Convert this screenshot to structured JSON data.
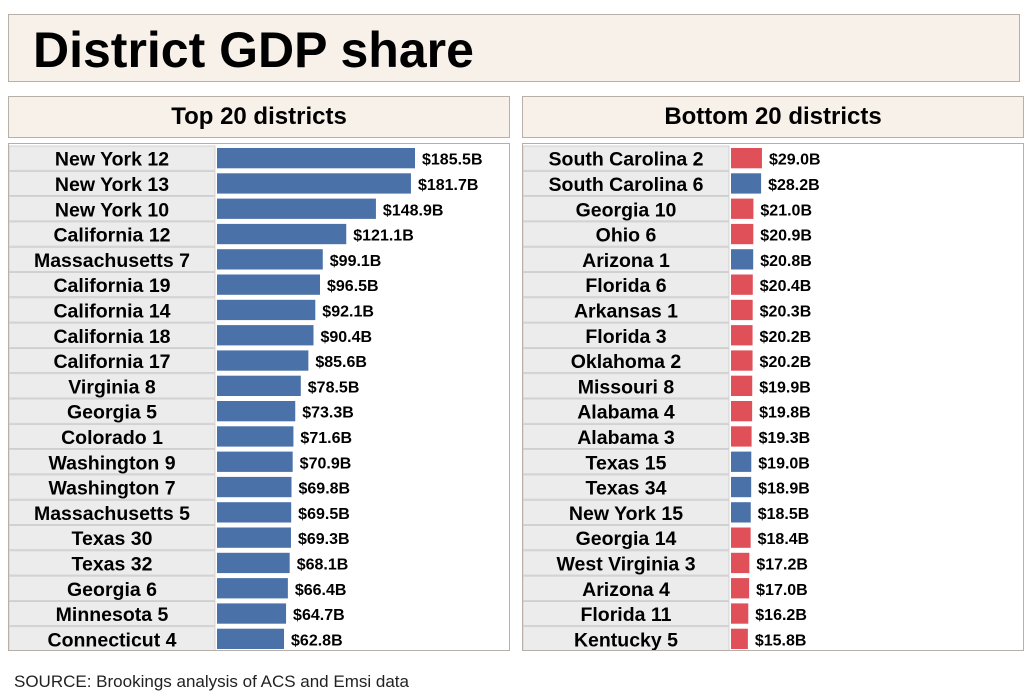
{
  "title": "District GDP share",
  "source": "SOURCE: Brookings analysis of ACS and Emsi data",
  "colors": {
    "blue": "#4a72a8",
    "red": "#e05058",
    "header_bg": "#f8f1ea",
    "label_bg": "#ececec"
  },
  "chart_data": [
    {
      "type": "bar",
      "orientation": "horizontal",
      "title": "Top 20 districts",
      "xlim": [
        0,
        185.5
      ],
      "categories": [
        "New York 12",
        "New York 13",
        "New York 10",
        "California 12",
        "Massachusetts 7",
        "California 19",
        "California 14",
        "California 18",
        "California 17",
        "Virginia 8",
        "Georgia 5",
        "Colorado 1",
        "Washington 9",
        "Washington 7",
        "Massachusetts 5",
        "Texas 30",
        "Texas 32",
        "Georgia 6",
        "Minnesota 5",
        "Connecticut 4"
      ],
      "values": [
        185.5,
        181.7,
        148.9,
        121.1,
        99.1,
        96.5,
        92.1,
        90.4,
        85.6,
        78.5,
        73.3,
        71.6,
        70.9,
        69.8,
        69.5,
        69.3,
        68.1,
        66.4,
        64.7,
        62.8
      ],
      "labels": [
        "$185.5B",
        "$181.7B",
        "$148.9B",
        "$121.1B",
        "$99.1B",
        "$96.5B",
        "$92.1B",
        "$90.4B",
        "$85.6B",
        "$78.5B",
        "$73.3B",
        "$71.6B",
        "$70.9B",
        "$69.8B",
        "$69.5B",
        "$69.3B",
        "$68.1B",
        "$66.4B",
        "$64.7B",
        "$62.8B"
      ],
      "colors": [
        "blue",
        "blue",
        "blue",
        "blue",
        "blue",
        "blue",
        "blue",
        "blue",
        "blue",
        "blue",
        "blue",
        "blue",
        "blue",
        "blue",
        "blue",
        "blue",
        "blue",
        "blue",
        "blue",
        "blue"
      ]
    },
    {
      "type": "bar",
      "orientation": "horizontal",
      "title": "Bottom 20 districts",
      "xlim": [
        0,
        185.5
      ],
      "categories": [
        "South Carolina 2",
        "South Carolina 6",
        "Georgia 10",
        "Ohio 6",
        "Arizona 1",
        "Florida 6",
        "Arkansas 1",
        "Florida 3",
        "Oklahoma 2",
        "Missouri 8",
        "Alabama 4",
        "Alabama 3",
        "Texas 15",
        "Texas 34",
        "New York 15",
        "Georgia 14",
        "West Virginia 3",
        "Arizona 4",
        "Florida 11",
        "Kentucky 5"
      ],
      "values": [
        29.0,
        28.2,
        21.0,
        20.9,
        20.8,
        20.4,
        20.3,
        20.2,
        20.2,
        19.9,
        19.8,
        19.3,
        19.0,
        18.9,
        18.5,
        18.4,
        17.2,
        17.0,
        16.2,
        15.8
      ],
      "labels": [
        "$29.0B",
        "$28.2B",
        "$21.0B",
        "$20.9B",
        "$20.8B",
        "$20.4B",
        "$20.3B",
        "$20.2B",
        "$20.2B",
        "$19.9B",
        "$19.8B",
        "$19.3B",
        "$19.0B",
        "$18.9B",
        "$18.5B",
        "$18.4B",
        "$17.2B",
        "$17.0B",
        "$16.2B",
        "$15.8B"
      ],
      "colors": [
        "red",
        "blue",
        "red",
        "red",
        "blue",
        "red",
        "red",
        "red",
        "red",
        "red",
        "red",
        "red",
        "blue",
        "blue",
        "blue",
        "red",
        "red",
        "red",
        "red",
        "red"
      ]
    }
  ]
}
